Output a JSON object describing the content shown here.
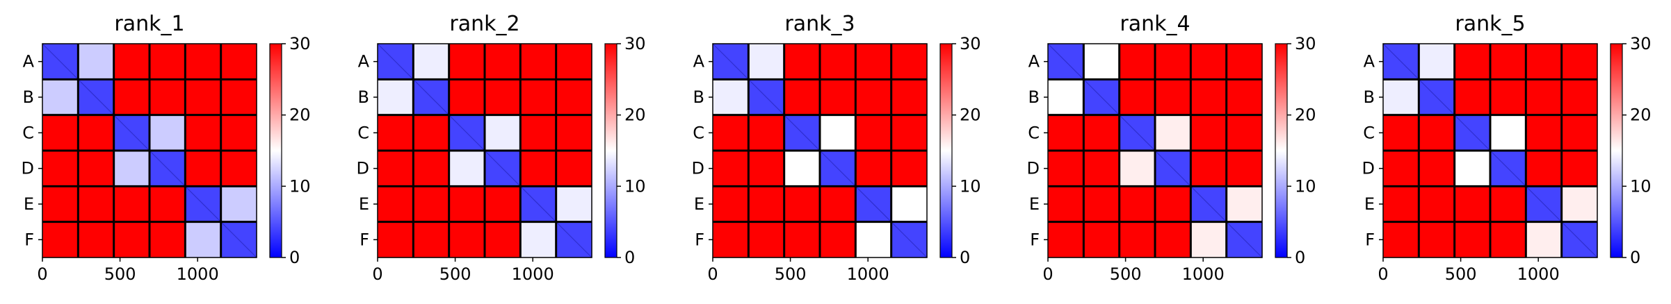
{
  "chart_data": [
    {
      "type": "heatmap",
      "title": "rank_1",
      "row_labels": [
        "A",
        "B",
        "C",
        "D",
        "E",
        "F"
      ],
      "x_ticks": [
        0,
        500,
        1000
      ],
      "x_range": [
        0,
        1380
      ],
      "colorbar_ticks": [
        0,
        10,
        20,
        30
      ],
      "colorbar_range": [
        0,
        30
      ],
      "colormap": [
        "#0000ff",
        "#ffffff",
        "#ff0000"
      ],
      "values": [
        [
          4,
          12,
          30,
          30,
          30,
          30
        ],
        [
          12,
          4,
          30,
          30,
          30,
          30
        ],
        [
          30,
          30,
          4,
          12,
          30,
          30
        ],
        [
          30,
          30,
          12,
          4,
          30,
          30
        ],
        [
          30,
          30,
          30,
          30,
          4,
          12
        ],
        [
          30,
          30,
          30,
          30,
          12,
          4
        ]
      ]
    },
    {
      "type": "heatmap",
      "title": "rank_2",
      "row_labels": [
        "A",
        "B",
        "C",
        "D",
        "E",
        "F"
      ],
      "x_ticks": [
        0,
        500,
        1000
      ],
      "x_range": [
        0,
        1380
      ],
      "colorbar_ticks": [
        0,
        10,
        20,
        30
      ],
      "colorbar_range": [
        0,
        30
      ],
      "colormap": [
        "#0000ff",
        "#ffffff",
        "#ff0000"
      ],
      "values": [
        [
          4,
          14,
          30,
          30,
          30,
          30
        ],
        [
          14,
          4,
          30,
          30,
          30,
          30
        ],
        [
          30,
          30,
          4,
          14,
          30,
          30
        ],
        [
          30,
          30,
          14,
          4,
          30,
          30
        ],
        [
          30,
          30,
          30,
          30,
          4,
          14
        ],
        [
          30,
          30,
          30,
          30,
          14,
          4
        ]
      ]
    },
    {
      "type": "heatmap",
      "title": "rank_3",
      "row_labels": [
        "A",
        "B",
        "C",
        "D",
        "E",
        "F"
      ],
      "x_ticks": [
        0,
        500,
        1000
      ],
      "x_range": [
        0,
        1380
      ],
      "colorbar_ticks": [
        0,
        10,
        20,
        30
      ],
      "colorbar_range": [
        0,
        30
      ],
      "colormap": [
        "#0000ff",
        "#ffffff",
        "#ff0000"
      ],
      "values": [
        [
          4,
          14,
          30,
          30,
          30,
          30
        ],
        [
          14,
          4,
          30,
          30,
          30,
          30
        ],
        [
          30,
          30,
          4,
          15,
          30,
          30
        ],
        [
          30,
          30,
          15,
          4,
          30,
          30
        ],
        [
          30,
          30,
          30,
          30,
          4,
          15
        ],
        [
          30,
          30,
          30,
          30,
          15,
          4
        ]
      ]
    },
    {
      "type": "heatmap",
      "title": "rank_4",
      "row_labels": [
        "A",
        "B",
        "C",
        "D",
        "E",
        "F"
      ],
      "x_ticks": [
        0,
        500,
        1000
      ],
      "x_range": [
        0,
        1380
      ],
      "colorbar_ticks": [
        0,
        10,
        20,
        30
      ],
      "colorbar_range": [
        0,
        30
      ],
      "colormap": [
        "#0000ff",
        "#ffffff",
        "#ff0000"
      ],
      "values": [
        [
          4,
          15,
          30,
          30,
          30,
          30
        ],
        [
          15,
          4,
          30,
          30,
          30,
          30
        ],
        [
          30,
          30,
          4,
          16,
          30,
          30
        ],
        [
          30,
          30,
          16,
          4,
          30,
          30
        ],
        [
          30,
          30,
          30,
          30,
          4,
          16
        ],
        [
          30,
          30,
          30,
          30,
          16,
          4
        ]
      ]
    },
    {
      "type": "heatmap",
      "title": "rank_5",
      "row_labels": [
        "A",
        "B",
        "C",
        "D",
        "E",
        "F"
      ],
      "x_ticks": [
        0,
        500,
        1000
      ],
      "x_range": [
        0,
        1380
      ],
      "colorbar_ticks": [
        0,
        10,
        20,
        30
      ],
      "colorbar_range": [
        0,
        30
      ],
      "colormap": [
        "#0000ff",
        "#ffffff",
        "#ff0000"
      ],
      "values": [
        [
          4,
          14,
          30,
          30,
          30,
          30
        ],
        [
          14,
          4,
          30,
          30,
          30,
          30
        ],
        [
          30,
          30,
          4,
          15,
          30,
          30
        ],
        [
          30,
          30,
          15,
          4,
          30,
          30
        ],
        [
          30,
          30,
          30,
          30,
          4,
          16
        ],
        [
          30,
          30,
          30,
          30,
          16,
          4
        ]
      ]
    }
  ]
}
